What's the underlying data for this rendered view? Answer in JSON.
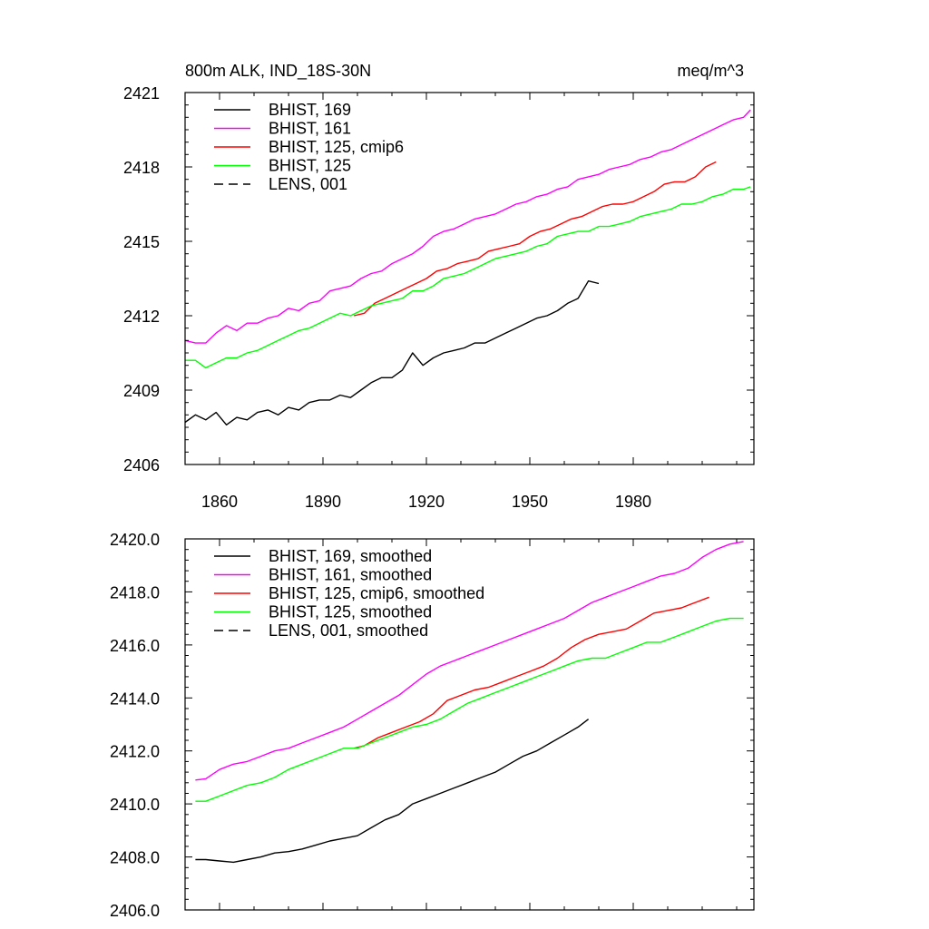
{
  "chart_data": [
    {
      "type": "line",
      "title": "800m ALK, IND_18S-30N",
      "units": "meq/m^3",
      "xlim": [
        1850,
        2015
      ],
      "ylim": [
        2406,
        2421
      ],
      "xticks": [
        1860,
        1890,
        1920,
        1950,
        1980
      ],
      "yticks": [
        2406,
        2409,
        2412,
        2415,
        2418,
        2421
      ],
      "ytick_labels": [
        "2406",
        "2409",
        "2412",
        "2415",
        "2418",
        "2421"
      ],
      "grid": false,
      "legend_position": "top-left",
      "series": [
        {
          "name": "BHIST, 169",
          "color": "#000000",
          "dash": "solid",
          "x": [
            1850,
            1853,
            1856,
            1859,
            1862,
            1865,
            1868,
            1871,
            1874,
            1877,
            1880,
            1883,
            1886,
            1889,
            1892,
            1895,
            1898,
            1901,
            1904,
            1907,
            1910,
            1913,
            1916,
            1919,
            1922,
            1925,
            1928,
            1931,
            1934,
            1937,
            1940,
            1943,
            1946,
            1949,
            1952,
            1955,
            1958,
            1961,
            1964,
            1967,
            1970
          ],
          "y": [
            2407.7,
            2408.0,
            2407.8,
            2408.1,
            2407.6,
            2407.9,
            2407.8,
            2408.1,
            2408.2,
            2408.0,
            2408.3,
            2408.2,
            2408.5,
            2408.6,
            2408.6,
            2408.8,
            2408.7,
            2409.0,
            2409.3,
            2409.5,
            2409.5,
            2409.8,
            2410.5,
            2410.0,
            2410.3,
            2410.5,
            2410.6,
            2410.7,
            2410.9,
            2410.9,
            2411.1,
            2411.3,
            2411.5,
            2411.7,
            2411.9,
            2412.0,
            2412.2,
            2412.5,
            2412.7,
            2413.4,
            2413.3
          ]
        },
        {
          "name": "BHIST, 161",
          "color": "#ff00ff",
          "dash": "solid",
          "x": [
            1850,
            1853,
            1856,
            1859,
            1862,
            1865,
            1868,
            1871,
            1874,
            1877,
            1880,
            1883,
            1886,
            1889,
            1892,
            1895,
            1898,
            1901,
            1904,
            1907,
            1910,
            1913,
            1916,
            1919,
            1922,
            1925,
            1928,
            1931,
            1934,
            1937,
            1940,
            1943,
            1946,
            1949,
            1952,
            1955,
            1958,
            1961,
            1964,
            1967,
            1970,
            1973,
            1976,
            1979,
            1982,
            1985,
            1988,
            1991,
            1994,
            1997,
            2000,
            2003,
            2006,
            2009,
            2012,
            2014
          ],
          "y": [
            2411.0,
            2410.9,
            2410.9,
            2411.3,
            2411.6,
            2411.4,
            2411.7,
            2411.7,
            2411.9,
            2412.0,
            2412.3,
            2412.2,
            2412.5,
            2412.6,
            2413.0,
            2413.1,
            2413.2,
            2413.5,
            2413.7,
            2413.8,
            2414.1,
            2414.3,
            2414.5,
            2414.8,
            2415.2,
            2415.4,
            2415.5,
            2415.7,
            2415.9,
            2416.0,
            2416.1,
            2416.3,
            2416.5,
            2416.6,
            2416.8,
            2416.9,
            2417.1,
            2417.2,
            2417.5,
            2417.6,
            2417.7,
            2417.9,
            2418.0,
            2418.1,
            2418.3,
            2418.4,
            2418.6,
            2418.7,
            2418.9,
            2419.1,
            2419.3,
            2419.5,
            2419.7,
            2419.9,
            2420.0,
            2420.3
          ]
        },
        {
          "name": "BHIST, 125, cmip6",
          "color": "#ff0000",
          "dash": "solid",
          "x": [
            1899,
            1902,
            1905,
            1908,
            1911,
            1914,
            1917,
            1920,
            1923,
            1926,
            1929,
            1932,
            1935,
            1938,
            1941,
            1944,
            1947,
            1950,
            1953,
            1956,
            1959,
            1962,
            1965,
            1968,
            1971,
            1974,
            1977,
            1980,
            1983,
            1986,
            1989,
            1992,
            1995,
            1998,
            2001,
            2004
          ],
          "y": [
            2412.0,
            2412.1,
            2412.5,
            2412.7,
            2412.9,
            2413.1,
            2413.3,
            2413.5,
            2413.8,
            2413.9,
            2414.1,
            2414.2,
            2414.3,
            2414.6,
            2414.7,
            2414.8,
            2414.9,
            2415.2,
            2415.4,
            2415.5,
            2415.7,
            2415.9,
            2416.0,
            2416.2,
            2416.4,
            2416.5,
            2416.5,
            2416.6,
            2416.8,
            2417.0,
            2417.3,
            2417.4,
            2417.4,
            2417.6,
            2418.0,
            2418.2
          ]
        },
        {
          "name": "BHIST, 125",
          "color": "#00ff00",
          "dash": "solid",
          "x": [
            1850,
            1853,
            1856,
            1859,
            1862,
            1865,
            1868,
            1871,
            1874,
            1877,
            1880,
            1883,
            1886,
            1889,
            1892,
            1895,
            1898,
            1901,
            1904,
            1907,
            1910,
            1913,
            1916,
            1919,
            1922,
            1925,
            1928,
            1931,
            1934,
            1937,
            1940,
            1943,
            1946,
            1949,
            1952,
            1955,
            1958,
            1961,
            1964,
            1967,
            1970,
            1973,
            1976,
            1979,
            1982,
            1985,
            1988,
            1991,
            1994,
            1997,
            2000,
            2003,
            2006,
            2009,
            2012,
            2014
          ],
          "y": [
            2410.2,
            2410.2,
            2409.9,
            2410.1,
            2410.3,
            2410.3,
            2410.5,
            2410.6,
            2410.8,
            2411.0,
            2411.2,
            2411.4,
            2411.5,
            2411.7,
            2411.9,
            2412.1,
            2412.0,
            2412.2,
            2412.4,
            2412.5,
            2412.6,
            2412.7,
            2413.0,
            2413.0,
            2413.2,
            2413.5,
            2413.6,
            2413.7,
            2413.9,
            2414.1,
            2414.3,
            2414.4,
            2414.5,
            2414.6,
            2414.8,
            2414.9,
            2415.2,
            2415.3,
            2415.4,
            2415.4,
            2415.6,
            2415.6,
            2415.7,
            2415.8,
            2416.0,
            2416.1,
            2416.2,
            2416.3,
            2416.5,
            2416.5,
            2416.6,
            2416.8,
            2416.9,
            2417.1,
            2417.1,
            2417.2
          ]
        },
        {
          "name": "LENS, 001",
          "color": "#000000",
          "dash": "dashed",
          "x": [],
          "y": []
        }
      ]
    },
    {
      "type": "line",
      "title": "",
      "units": "",
      "xlim": [
        1850,
        2015
      ],
      "ylim": [
        2406.0,
        2420.0
      ],
      "xticks": [
        1860,
        1890,
        1920,
        1950,
        1980
      ],
      "yticks": [
        2406,
        2408,
        2410,
        2412,
        2414,
        2416,
        2418,
        2420
      ],
      "ytick_labels": [
        "2406.0",
        "2408.0",
        "2410.0",
        "2412.0",
        "2414.0",
        "2416.0",
        "2418.0",
        "2420.0"
      ],
      "grid": false,
      "legend_position": "top-left",
      "series": [
        {
          "name": "BHIST, 169, smoothed",
          "color": "#000000",
          "dash": "solid",
          "x": [
            1853,
            1856,
            1860,
            1864,
            1868,
            1872,
            1876,
            1880,
            1884,
            1888,
            1892,
            1896,
            1900,
            1904,
            1908,
            1912,
            1916,
            1920,
            1924,
            1928,
            1932,
            1936,
            1940,
            1944,
            1948,
            1952,
            1956,
            1960,
            1964,
            1967
          ],
          "y": [
            2407.9,
            2407.9,
            2407.85,
            2407.8,
            2407.9,
            2408.0,
            2408.15,
            2408.2,
            2408.3,
            2408.45,
            2408.6,
            2408.7,
            2408.8,
            2409.1,
            2409.4,
            2409.6,
            2410.0,
            2410.2,
            2410.4,
            2410.6,
            2410.8,
            2411.0,
            2411.2,
            2411.5,
            2411.8,
            2412.0,
            2412.3,
            2412.6,
            2412.9,
            2413.2
          ]
        },
        {
          "name": "BHIST, 161, smoothed",
          "color": "#ff00ff",
          "dash": "solid",
          "x": [
            1853,
            1856,
            1860,
            1864,
            1868,
            1872,
            1876,
            1880,
            1884,
            1888,
            1892,
            1896,
            1900,
            1904,
            1908,
            1912,
            1916,
            1920,
            1924,
            1928,
            1932,
            1936,
            1940,
            1944,
            1948,
            1952,
            1956,
            1960,
            1964,
            1968,
            1972,
            1976,
            1980,
            1984,
            1988,
            1992,
            1996,
            2000,
            2004,
            2008,
            2012
          ],
          "y": [
            2410.9,
            2410.95,
            2411.3,
            2411.5,
            2411.6,
            2411.8,
            2412.0,
            2412.1,
            2412.3,
            2412.5,
            2412.7,
            2412.9,
            2413.2,
            2413.5,
            2413.8,
            2414.1,
            2414.5,
            2414.9,
            2415.2,
            2415.4,
            2415.6,
            2415.8,
            2416.0,
            2416.2,
            2416.4,
            2416.6,
            2416.8,
            2417.0,
            2417.3,
            2417.6,
            2417.8,
            2418.0,
            2418.2,
            2418.4,
            2418.6,
            2418.7,
            2418.9,
            2419.3,
            2419.6,
            2419.8,
            2419.9
          ]
        },
        {
          "name": "BHIST, 125, cmip6, smoothed",
          "color": "#ff0000",
          "dash": "solid",
          "x": [
            1899,
            1902,
            1906,
            1910,
            1914,
            1918,
            1922,
            1926,
            1930,
            1934,
            1938,
            1942,
            1946,
            1950,
            1954,
            1958,
            1962,
            1966,
            1970,
            1974,
            1978,
            1982,
            1986,
            1990,
            1994,
            1998,
            2002
          ],
          "y": [
            2412.1,
            2412.2,
            2412.5,
            2412.7,
            2412.9,
            2413.1,
            2413.4,
            2413.9,
            2414.1,
            2414.3,
            2414.4,
            2414.6,
            2414.8,
            2415.0,
            2415.2,
            2415.5,
            2415.9,
            2416.2,
            2416.4,
            2416.5,
            2416.6,
            2416.9,
            2417.2,
            2417.3,
            2417.4,
            2417.6,
            2417.8
          ]
        },
        {
          "name": "BHIST, 125, smoothed",
          "color": "#00ff00",
          "dash": "solid",
          "x": [
            1853,
            1856,
            1860,
            1864,
            1868,
            1872,
            1876,
            1880,
            1884,
            1888,
            1892,
            1896,
            1900,
            1904,
            1908,
            1912,
            1916,
            1920,
            1924,
            1928,
            1932,
            1936,
            1940,
            1944,
            1948,
            1952,
            1956,
            1960,
            1964,
            1968,
            1972,
            1976,
            1980,
            1984,
            1988,
            1992,
            1996,
            2000,
            2004,
            2008,
            2012
          ],
          "y": [
            2410.1,
            2410.1,
            2410.3,
            2410.5,
            2410.7,
            2410.8,
            2411.0,
            2411.3,
            2411.5,
            2411.7,
            2411.9,
            2412.1,
            2412.1,
            2412.3,
            2412.5,
            2412.7,
            2412.9,
            2413.0,
            2413.2,
            2413.5,
            2413.8,
            2414.0,
            2414.2,
            2414.4,
            2414.6,
            2414.8,
            2415.0,
            2415.2,
            2415.4,
            2415.5,
            2415.5,
            2415.7,
            2415.9,
            2416.1,
            2416.1,
            2416.3,
            2416.5,
            2416.7,
            2416.9,
            2417.0,
            2417.0
          ]
        },
        {
          "name": "LENS, 001, smoothed",
          "color": "#000000",
          "dash": "dashed",
          "x": [],
          "y": []
        }
      ]
    }
  ]
}
